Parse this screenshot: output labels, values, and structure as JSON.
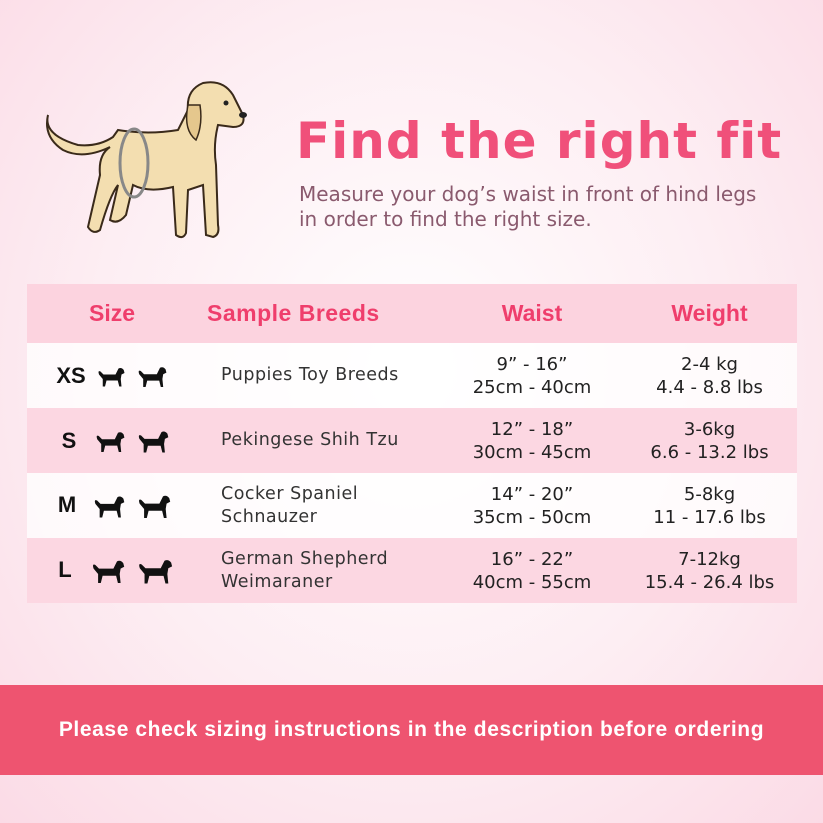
{
  "header": {
    "title": "Find the right fit",
    "subtitle": "Measure your dog’s waist in front of hind legs in order to find the right size."
  },
  "table": {
    "columns": [
      "Size",
      "Sample Breeds",
      "Waist",
      "Weight"
    ],
    "rows": [
      {
        "size": "XS",
        "breeds": [
          "Puppies Toy Breeds"
        ],
        "waist": [
          "9” - 16”",
          "25cm - 40cm"
        ],
        "weight": [
          "2-4 kg",
          "4.4 - 8.8 lbs"
        ]
      },
      {
        "size": "S",
        "breeds": [
          "Pekingese Shih Tzu"
        ],
        "waist": [
          "12” - 18”",
          "30cm - 45cm"
        ],
        "weight": [
          "3-6kg",
          "6.6 - 13.2 lbs"
        ]
      },
      {
        "size": "M",
        "breeds": [
          "Cocker Spaniel",
          "Schnauzer"
        ],
        "waist": [
          "14” - 20”",
          "35cm - 50cm"
        ],
        "weight": [
          "5-8kg",
          "11 - 17.6 lbs"
        ]
      },
      {
        "size": "L",
        "breeds": [
          "German Shepherd",
          "Weimaraner"
        ],
        "waist": [
          "16” - 22”",
          "40cm - 55cm"
        ],
        "weight": [
          "7-12kg",
          "15.4 - 26.4 lbs"
        ]
      }
    ]
  },
  "banner": {
    "text": "Please check sizing instructions in the description before ordering"
  },
  "colors": {
    "accent": "#f0507a",
    "banner": "#ee5470",
    "header_row": "#fcd3df"
  }
}
